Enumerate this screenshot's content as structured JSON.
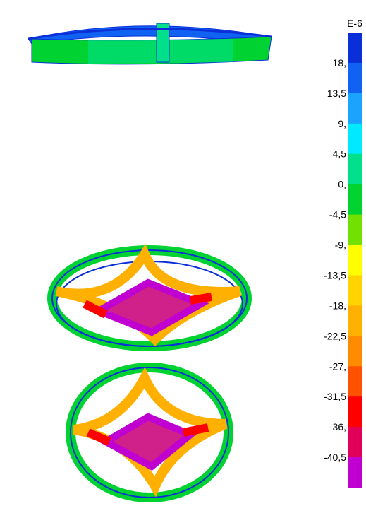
{
  "legend": {
    "unit": "E-6",
    "labels": [
      "18,",
      "13,5",
      "9,",
      "4,5",
      "0,",
      "-4,5",
      "-9,",
      "-13,5",
      "-18,",
      "-22,5",
      "-27,",
      "-31,5",
      "-36,",
      "-40,5"
    ],
    "colors": [
      "#0a2fd8",
      "#1062f2",
      "#1aa4ff",
      "#00eaff",
      "#00e08a",
      "#00d232",
      "#72e000",
      "#ffff00",
      "#ffd400",
      "#ffb000",
      "#ff8c00",
      "#ff5200",
      "#ff0000",
      "#e0005a",
      "#c000d0"
    ]
  }
}
